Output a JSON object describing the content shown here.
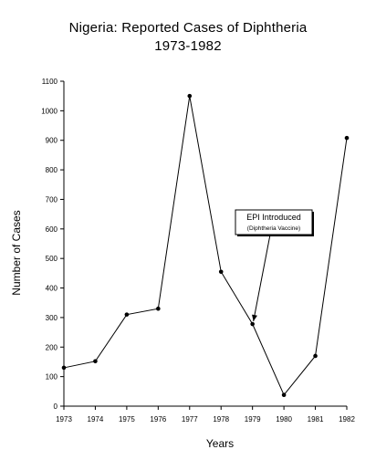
{
  "chart_data": {
    "type": "line",
    "title_line1": "Nigeria: Reported Cases of Diphtheria",
    "title_line2": "1973-1982",
    "xlabel": "Years",
    "ylabel": "Number of Cases",
    "x": [
      "1973",
      "1974",
      "1975",
      "1976",
      "1977",
      "1978",
      "1979",
      "1980",
      "1981",
      "1982"
    ],
    "values": [
      130,
      152,
      310,
      330,
      1050,
      455,
      278,
      38,
      170,
      908
    ],
    "ylim": [
      0,
      1100
    ],
    "yticks": [
      0,
      100,
      200,
      300,
      400,
      500,
      600,
      700,
      800,
      900,
      1000,
      1100
    ],
    "grid": false,
    "line_color": "#000000",
    "annotation": {
      "line1": "EPI Introduced",
      "line2": "(Diphtheria Vaccine)",
      "points_to_x": "1979",
      "points_to_y": 278
    }
  }
}
